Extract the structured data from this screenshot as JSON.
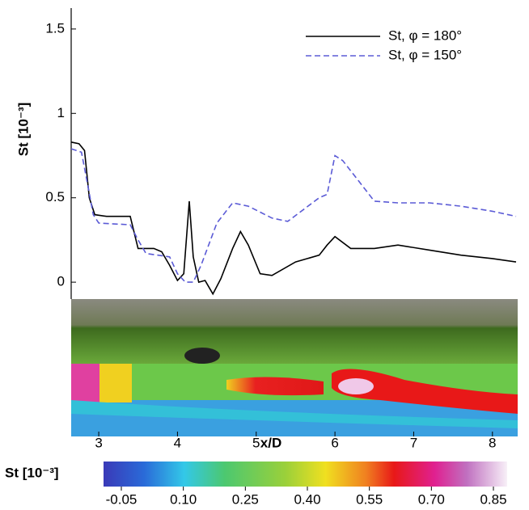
{
  "chart_data": {
    "type": "line",
    "y_label": "St [10⁻³]",
    "x_label": "x/D",
    "xlim": [
      2.65,
      8.3
    ],
    "ylim": [
      -0.1,
      1.6
    ],
    "xticks": [
      3,
      4,
      5,
      6,
      7,
      8
    ],
    "yticks": [
      0,
      0.5,
      1,
      1.5
    ],
    "legend": "top-right",
    "series": [
      {
        "name": "St, φ = 180°",
        "color": "#000000",
        "dash": "solid",
        "x": [
          2.65,
          2.75,
          2.82,
          2.88,
          2.95,
          3.1,
          3.4,
          3.5,
          3.7,
          3.8,
          3.9,
          4.0,
          4.08,
          4.15,
          4.2,
          4.27,
          4.35,
          4.45,
          4.55,
          4.7,
          4.8,
          4.9,
          5.05,
          5.2,
          5.5,
          5.8,
          5.9,
          6.0,
          6.2,
          6.5,
          6.8,
          7.2,
          7.6,
          8.0,
          8.3
        ],
        "values": [
          0.83,
          0.82,
          0.78,
          0.5,
          0.4,
          0.39,
          0.39,
          0.2,
          0.2,
          0.18,
          0.1,
          0.01,
          0.05,
          0.48,
          0.15,
          0.0,
          0.01,
          -0.07,
          0.02,
          0.2,
          0.3,
          0.22,
          0.05,
          0.04,
          0.12,
          0.16,
          0.22,
          0.27,
          0.2,
          0.2,
          0.22,
          0.19,
          0.16,
          0.14,
          0.12
        ]
      },
      {
        "name": "St, φ = 150°",
        "color": "#5b5bd6",
        "dash": "dashed",
        "x": [
          2.65,
          2.78,
          2.85,
          2.93,
          3.0,
          3.4,
          3.5,
          3.6,
          3.9,
          4.0,
          4.1,
          4.2,
          4.3,
          4.5,
          4.7,
          4.9,
          5.2,
          5.4,
          5.6,
          5.8,
          5.9,
          6.0,
          6.1,
          6.3,
          6.5,
          6.8,
          7.2,
          7.6,
          8.0,
          8.3
        ],
        "values": [
          0.79,
          0.77,
          0.6,
          0.4,
          0.35,
          0.34,
          0.25,
          0.17,
          0.15,
          0.05,
          0.0,
          0.0,
          0.1,
          0.35,
          0.47,
          0.45,
          0.38,
          0.36,
          0.43,
          0.5,
          0.52,
          0.75,
          0.72,
          0.6,
          0.48,
          0.47,
          0.47,
          0.45,
          0.42,
          0.39
        ]
      }
    ],
    "colorbar": {
      "label": "St [10⁻³]",
      "ticks": [
        -0.05,
        {
          "value": 0.1,
          "label": "0.10"
        },
        0.25,
        {
          "value": 0.4,
          "label": "0.40"
        },
        0.55,
        {
          "value": 0.7,
          "label": "0.70"
        },
        0.85
      ]
    }
  }
}
